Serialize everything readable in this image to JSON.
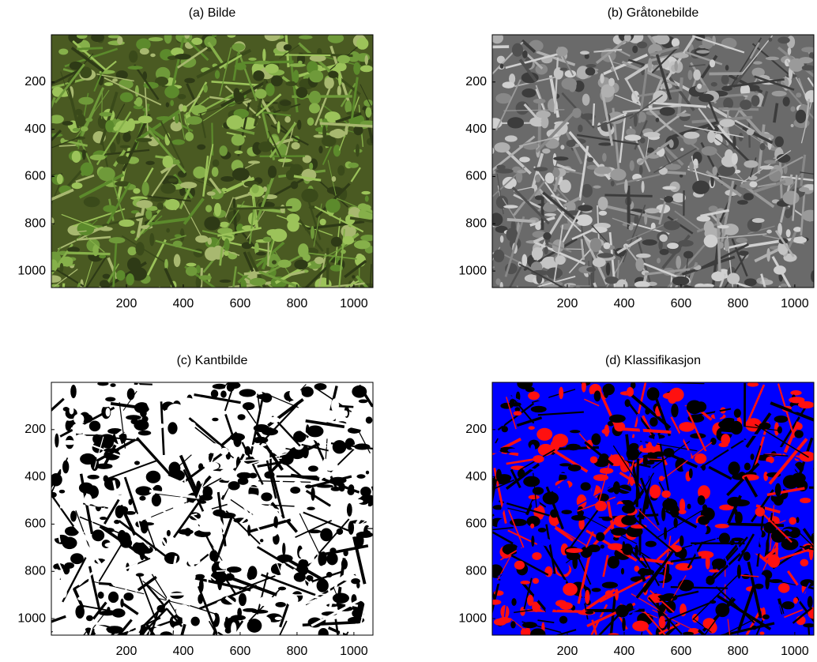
{
  "chart_data": [
    {
      "type": "image",
      "title": "(a) Bilde",
      "xlim": [
        -64,
        1067
      ],
      "ylim": [
        0,
        1070
      ],
      "xticks": [
        200,
        400,
        600,
        800,
        1000
      ],
      "yticks": [
        200,
        400,
        600,
        800,
        1000
      ]
    },
    {
      "type": "image",
      "title": "(b) Gråtonebilde",
      "xlim": [
        -64,
        1067
      ],
      "ylim": [
        0,
        1070
      ],
      "xticks": [
        200,
        400,
        600,
        800,
        1000
      ],
      "yticks": [
        200,
        400,
        600,
        800,
        1000
      ]
    },
    {
      "type": "image",
      "title": "(c) Kantbilde",
      "xlim": [
        -64,
        1067
      ],
      "ylim": [
        0,
        1070
      ],
      "xticks": [
        200,
        400,
        600,
        800,
        1000
      ],
      "yticks": [
        200,
        400,
        600,
        800,
        1000
      ]
    },
    {
      "type": "image",
      "title": "(d) Klassifikasjon",
      "xlim": [
        -64,
        1067
      ],
      "ylim": [
        0,
        1070
      ],
      "xticks": [
        200,
        400,
        600,
        800,
        1000
      ],
      "yticks": [
        200,
        400,
        600,
        800,
        1000
      ]
    }
  ]
}
